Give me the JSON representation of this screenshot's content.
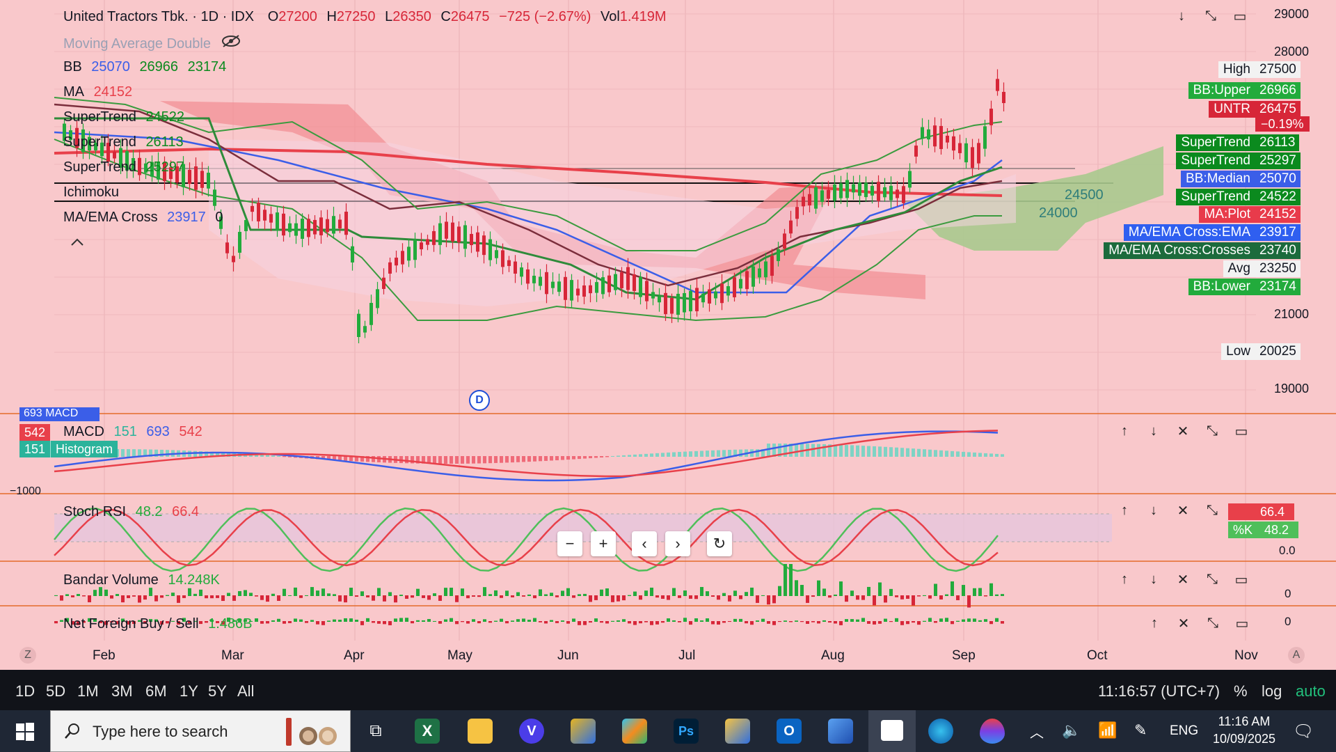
{
  "header": {
    "symbol_title": "United Tractors Tbk. · 1D · IDX",
    "o_label": "O",
    "o": "27200",
    "h_label": "H",
    "h": "27250",
    "l_label": "L",
    "l": "26350",
    "c_label": "C",
    "c": "26475",
    "change": "−725 (−2.67%)",
    "vol_label": "Vol",
    "vol": "1.419M"
  },
  "legend": {
    "ma_double": "Moving Average Double",
    "bb_name": "BB",
    "bb_v1": "25070",
    "bb_v2": "26966",
    "bb_v3": "23174",
    "ma_name": "MA",
    "ma_v": "24152",
    "st1_name": "SuperTrend",
    "st1_v": "24522",
    "st2_name": "SuperTrend",
    "st2_v": "26113",
    "st3_name": "SuperTrend",
    "st3_v": "25297",
    "ichimoku": "Ichimoku",
    "maema_name": "MA/EMA Cross",
    "maema_v": "23917",
    "maema_v2": "0"
  },
  "price_axis": [
    "29000",
    "28000",
    "21000",
    "19000"
  ],
  "price_tags": [
    {
      "label": "High",
      "value": "27500",
      "label_bg": "#f2f2f2",
      "value_bg": "#f2f2f2",
      "fg": "#131722"
    },
    {
      "label": "BB:Upper",
      "value": "26966",
      "label_bg": "#22ab3c",
      "value_bg": "#22ab3c",
      "fg": "#ffffff"
    },
    {
      "label": "UNTR",
      "value": "26475",
      "label_bg": "#d72638",
      "value_bg": "#d72638",
      "fg": "#ffffff"
    },
    {
      "label": "SuperTrend",
      "value": "26113",
      "label_bg": "#0b8a1e",
      "value_bg": "#0b8a1e",
      "fg": "#ffffff"
    },
    {
      "label": "SuperTrend",
      "value": "25297",
      "label_bg": "#0b8a1e",
      "value_bg": "#0b8a1e",
      "fg": "#ffffff"
    },
    {
      "label": "BB:Median",
      "value": "25070",
      "label_bg": "#3b5ee8",
      "value_bg": "#3b5ee8",
      "fg": "#ffffff"
    },
    {
      "label": "SuperTrend",
      "value": "24522",
      "label_bg": "#0b8a1e",
      "value_bg": "#0b8a1e",
      "fg": "#ffffff"
    },
    {
      "label": "MA:Plot",
      "value": "24152",
      "label_bg": "#e83b4b",
      "value_bg": "#e83b4b",
      "fg": "#ffffff"
    },
    {
      "label": "MA/EMA Cross:EMA",
      "value": "23917",
      "label_bg": "#2f5ff0",
      "value_bg": "#2f5ff0",
      "fg": "#ffffff"
    },
    {
      "label": "MA/EMA Cross:Crosses",
      "value": "23740",
      "label_bg": "#1c6b3c",
      "value_bg": "#1c6b3c",
      "fg": "#ffffff"
    },
    {
      "label": "Avg",
      "value": "23250",
      "label_bg": "#f2f2f2",
      "value_bg": "#f2f2f2",
      "fg": "#131722"
    },
    {
      "label": "BB:Lower",
      "value": "23174",
      "label_bg": "#22ab3c",
      "value_bg": "#22ab3c",
      "fg": "#ffffff"
    },
    {
      "label": "Low",
      "value": "20025",
      "label_bg": "#f2f2f2",
      "value_bg": "#f2f2f2",
      "fg": "#131722"
    }
  ],
  "untr_change": "−0.19%",
  "chart_annotations": {
    "level1": "24500",
    "level2": "24000",
    "d_marker": "D"
  },
  "macd": {
    "tag1": "542",
    "tag2": "151",
    "tag2_label": "Histogram",
    "name": "MACD",
    "v1": "151",
    "v2": "693",
    "v3": "542",
    "axis": "−1000"
  },
  "stoch": {
    "name": "Stoch RSI",
    "v1": "48.2",
    "v2": "66.4",
    "tag_v2": "66.4",
    "tag_k_label": "%K",
    "tag_k": "48.2",
    "axis": "0.0"
  },
  "bandar": {
    "name": "Bandar Volume",
    "v": "14.248K",
    "axis": "0"
  },
  "nfbs": {
    "name": "Net Foreign Buy / Sell",
    "v": "1.486B",
    "axis": "0"
  },
  "months": [
    "Feb",
    "Mar",
    "Apr",
    "May",
    "Jun",
    "Jul",
    "Aug",
    "Sep",
    "Oct",
    "Nov"
  ],
  "corner_left": "Z",
  "corner_right": "A",
  "ranges": [
    "1D",
    "5D",
    "1M",
    "3M",
    "6M",
    "1Y",
    "5Y",
    "All"
  ],
  "clock_utc": "11:16:57 (UTC+7)",
  "pct": "%",
  "log": "log",
  "auto": "auto",
  "taskbar": {
    "search_placeholder": "Type here to search",
    "lang": "ENG",
    "time": "11:16 AM",
    "date": "10/09/2025"
  },
  "colors": {
    "bg": "#f9c8cb",
    "up": "#22ab3c",
    "down": "#d72638",
    "ma_red": "#e8404a",
    "bb_blue": "#3b5ee8",
    "cloud_green": "#a8c98e"
  }
}
